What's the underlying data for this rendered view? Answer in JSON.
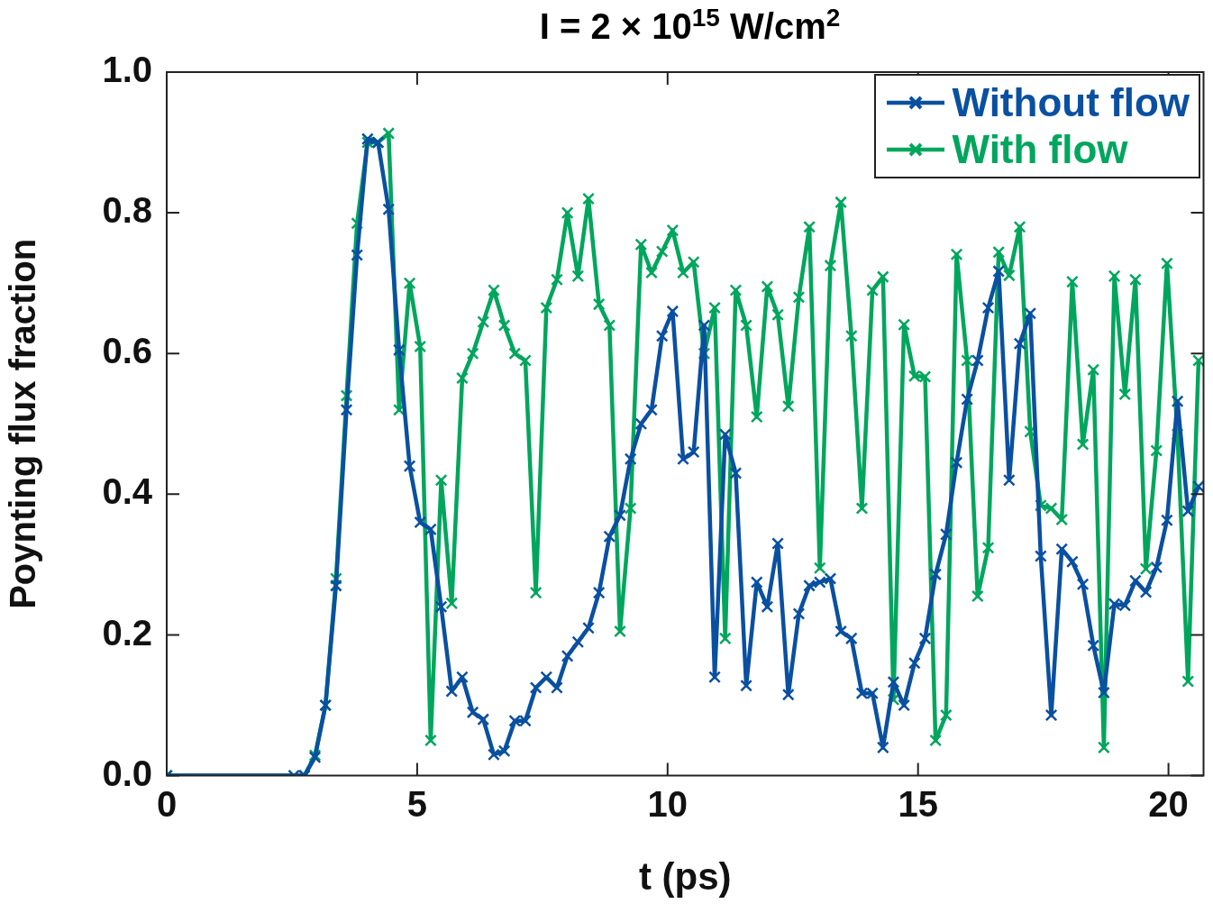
{
  "chart_data": {
    "type": "line",
    "title": "I = 2 × 10$^{15}$ W/cm$^{2}$",
    "xlabel": "t (ps)",
    "ylabel": "Poynting flux fraction",
    "x": [
      0,
      2.54,
      2.75,
      2.96,
      3.17,
      3.38,
      3.59,
      3.8,
      4.01,
      4.22,
      4.43,
      4.64,
      4.85,
      5.06,
      5.27,
      5.48,
      5.69,
      5.9,
      6.11,
      6.32,
      6.53,
      6.74,
      6.95,
      7.16,
      7.37,
      7.58,
      7.79,
      8.0,
      8.21,
      8.42,
      8.63,
      8.84,
      9.05,
      9.26,
      9.47,
      9.68,
      9.89,
      10.1,
      10.31,
      10.52,
      10.73,
      10.94,
      11.15,
      11.36,
      11.57,
      11.78,
      11.99,
      12.2,
      12.41,
      12.62,
      12.83,
      13.04,
      13.25,
      13.46,
      13.67,
      13.88,
      14.09,
      14.3,
      14.51,
      14.72,
      14.93,
      15.14,
      15.35,
      15.56,
      15.77,
      15.98,
      16.19,
      16.4,
      16.61,
      16.82,
      17.03,
      17.24,
      17.45,
      17.66,
      17.87,
      18.08,
      18.29,
      18.5,
      18.71,
      18.92,
      19.13,
      19.34,
      19.55,
      19.76,
      19.97,
      20.18,
      20.39,
      20.6
    ],
    "series": [
      {
        "name": "Without flow",
        "color": "#0a50a1",
        "marker": "cross",
        "values": [
          0,
          0,
          0,
          0.026,
          0.1,
          0.27,
          0.52,
          0.74,
          0.905,
          0.9,
          0.805,
          0.605,
          0.44,
          0.36,
          0.35,
          0.24,
          0.12,
          0.14,
          0.09,
          0.08,
          0.03,
          0.035,
          0.078,
          0.078,
          0.125,
          0.14,
          0.125,
          0.17,
          0.19,
          0.21,
          0.26,
          0.34,
          0.37,
          0.45,
          0.5,
          0.52,
          0.625,
          0.66,
          0.45,
          0.46,
          0.64,
          0.14,
          0.485,
          0.43,
          0.128,
          0.275,
          0.24,
          0.33,
          0.115,
          0.23,
          0.27,
          0.275,
          0.28,
          0.205,
          0.195,
          0.117,
          0.117,
          0.04,
          0.133,
          0.1,
          0.16,
          0.195,
          0.286,
          0.343,
          0.445,
          0.535,
          0.59,
          0.665,
          0.717,
          0.42,
          0.614,
          0.657,
          0.312,
          0.086,
          0.322,
          0.304,
          0.272,
          0.185,
          0.118,
          0.244,
          0.242,
          0.277,
          0.261,
          0.296,
          0.363,
          0.532,
          0.376,
          0.411
        ]
      },
      {
        "name": "With flow",
        "color": "#00a65d",
        "marker": "cross",
        "values": [
          0,
          null,
          0,
          0.029,
          0.1,
          0.28,
          0.54,
          0.785,
          0.9,
          0.9,
          0.913,
          0.52,
          0.7,
          0.61,
          0.05,
          0.42,
          0.245,
          0.565,
          0.6,
          0.645,
          0.69,
          0.64,
          0.6,
          0.59,
          0.26,
          0.665,
          0.705,
          0.8,
          0.71,
          0.82,
          0.67,
          0.64,
          0.205,
          0.38,
          0.755,
          0.715,
          0.745,
          0.775,
          0.715,
          0.73,
          0.6,
          0.665,
          0.195,
          0.69,
          0.64,
          0.51,
          0.695,
          0.655,
          0.525,
          0.68,
          0.78,
          0.295,
          0.725,
          0.815,
          0.625,
          0.38,
          0.69,
          0.709,
          0.108,
          0.641,
          0.568,
          0.567,
          0.05,
          0.086,
          0.741,
          0.59,
          0.255,
          0.324,
          0.744,
          0.711,
          0.78,
          0.489,
          0.384,
          0.38,
          0.364,
          0.702,
          0.471,
          0.577,
          0.04,
          0.71,
          0.542,
          0.705,
          0.294,
          0.462,
          0.728,
          0.485,
          0.134,
          0.59
        ]
      }
    ],
    "xlim": [
      0,
      20.7
    ],
    "xticks": [
      0,
      5,
      10,
      15,
      20
    ],
    "ylim": [
      0,
      1
    ],
    "yticks": [
      {
        "value": 0,
        "label": "0.0"
      },
      {
        "value": 0.2,
        "label": "0.2"
      },
      {
        "value": 0.4,
        "label": "0.4"
      },
      {
        "value": 0.6,
        "label": "0.6"
      },
      {
        "value": 0.8,
        "label": "0.8"
      },
      {
        "value": 1,
        "label": "1.0"
      }
    ],
    "grid": false,
    "legend": "top right"
  }
}
